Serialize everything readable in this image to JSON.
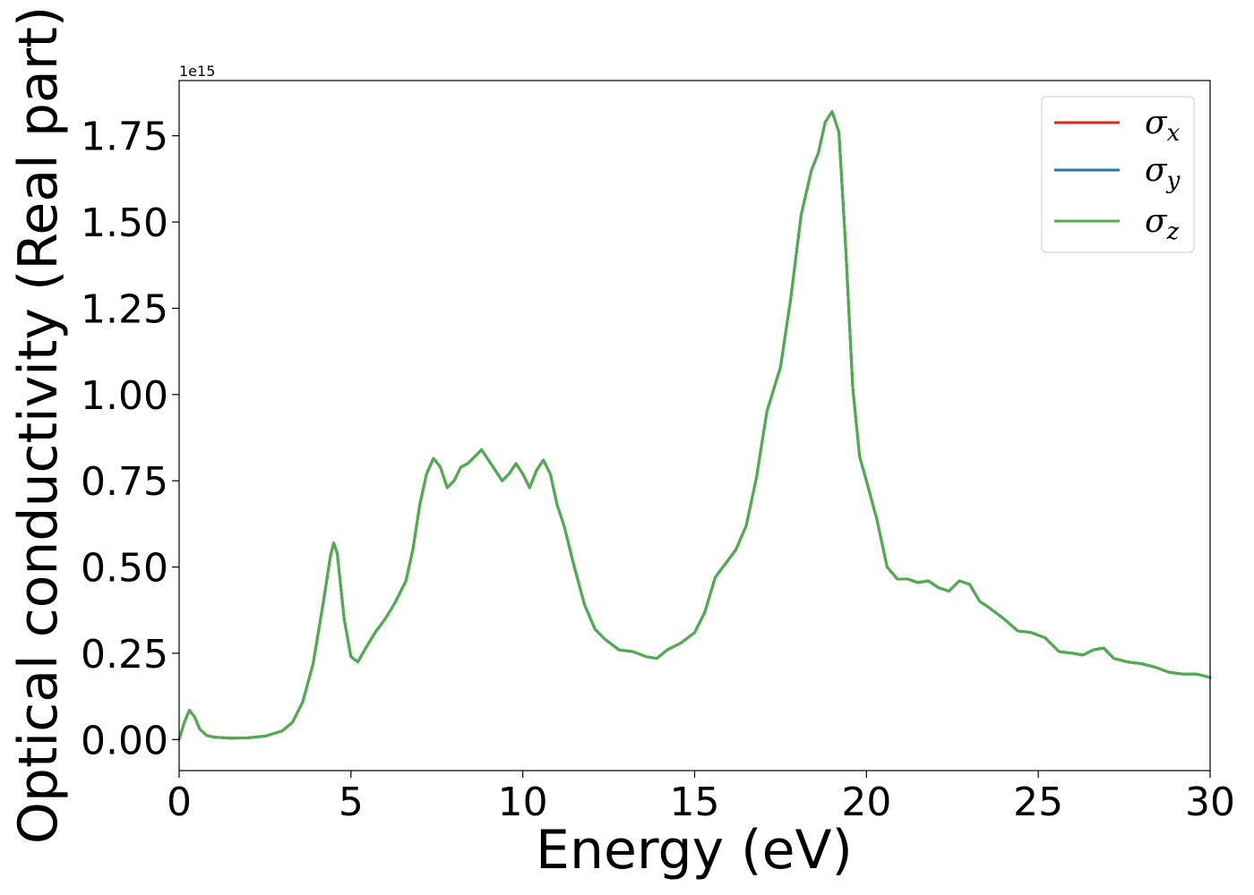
{
  "chart_data": {
    "type": "line",
    "title": "",
    "xlabel": "Energy (eV)",
    "ylabel": "Optical conductivity (Real part)",
    "y_offset_label": "1e15",
    "xlim": [
      0,
      30
    ],
    "ylim": [
      -0.09,
      1.91
    ],
    "x_ticks": [
      0,
      5,
      10,
      15,
      20,
      25,
      30
    ],
    "x_tick_labels": [
      "0",
      "5",
      "10",
      "15",
      "20",
      "25",
      "30"
    ],
    "y_ticks": [
      0.0,
      0.25,
      0.5,
      0.75,
      1.0,
      1.25,
      1.5,
      1.75
    ],
    "y_tick_labels": [
      "0.00",
      "0.25",
      "0.50",
      "0.75",
      "1.00",
      "1.25",
      "1.50",
      "1.75"
    ],
    "grid": false,
    "legend_position": "top-right",
    "x": [
      0,
      0.15,
      0.3,
      0.45,
      0.6,
      0.8,
      1.0,
      1.5,
      2.0,
      2.5,
      3.0,
      3.3,
      3.6,
      3.9,
      4.2,
      4.4,
      4.5,
      4.6,
      4.8,
      5.0,
      5.2,
      5.4,
      5.7,
      6.0,
      6.3,
      6.6,
      6.8,
      7.0,
      7.2,
      7.4,
      7.6,
      7.8,
      8.0,
      8.2,
      8.4,
      8.6,
      8.8,
      9.0,
      9.2,
      9.4,
      9.6,
      9.8,
      10.0,
      10.2,
      10.4,
      10.6,
      10.8,
      11.0,
      11.2,
      11.5,
      11.8,
      12.1,
      12.4,
      12.8,
      13.2,
      13.6,
      13.9,
      14.2,
      14.6,
      15.0,
      15.3,
      15.6,
      15.9,
      16.2,
      16.5,
      16.8,
      17.1,
      17.5,
      17.8,
      18.1,
      18.4,
      18.6,
      18.8,
      19.0,
      19.2,
      19.4,
      19.6,
      19.8,
      20.0,
      20.3,
      20.6,
      20.9,
      21.2,
      21.5,
      21.8,
      22.1,
      22.4,
      22.7,
      23.0,
      23.3,
      23.6,
      24.0,
      24.4,
      24.8,
      25.2,
      25.6,
      26.0,
      26.3,
      26.6,
      26.9,
      27.2,
      27.6,
      28.0,
      28.4,
      28.8,
      29.2,
      29.6,
      30.0
    ],
    "series": [
      {
        "name": "σx",
        "color": "#d62728",
        "values": [
          0.0,
          0.05,
          0.085,
          0.065,
          0.03,
          0.012,
          0.007,
          0.004,
          0.005,
          0.01,
          0.025,
          0.05,
          0.11,
          0.22,
          0.4,
          0.53,
          0.57,
          0.54,
          0.35,
          0.24,
          0.225,
          0.26,
          0.31,
          0.35,
          0.4,
          0.46,
          0.55,
          0.68,
          0.77,
          0.815,
          0.79,
          0.73,
          0.75,
          0.79,
          0.8,
          0.82,
          0.84,
          0.81,
          0.78,
          0.75,
          0.77,
          0.8,
          0.77,
          0.73,
          0.78,
          0.81,
          0.77,
          0.68,
          0.62,
          0.5,
          0.39,
          0.32,
          0.29,
          0.26,
          0.255,
          0.24,
          0.235,
          0.26,
          0.28,
          0.31,
          0.37,
          0.47,
          0.51,
          0.55,
          0.62,
          0.76,
          0.95,
          1.08,
          1.28,
          1.52,
          1.65,
          1.7,
          1.79,
          1.82,
          1.76,
          1.42,
          1.02,
          0.82,
          0.75,
          0.64,
          0.5,
          0.465,
          0.465,
          0.455,
          0.46,
          0.44,
          0.43,
          0.46,
          0.45,
          0.4,
          0.38,
          0.35,
          0.315,
          0.31,
          0.295,
          0.255,
          0.25,
          0.245,
          0.26,
          0.265,
          0.235,
          0.225,
          0.22,
          0.21,
          0.195,
          0.19,
          0.19,
          0.18
        ]
      },
      {
        "name": "σy",
        "color": "#1f77b4",
        "values": [
          0.0,
          0.05,
          0.085,
          0.065,
          0.03,
          0.012,
          0.007,
          0.004,
          0.005,
          0.01,
          0.025,
          0.05,
          0.11,
          0.22,
          0.4,
          0.53,
          0.57,
          0.54,
          0.35,
          0.24,
          0.225,
          0.26,
          0.31,
          0.35,
          0.4,
          0.46,
          0.55,
          0.68,
          0.77,
          0.815,
          0.79,
          0.73,
          0.75,
          0.79,
          0.8,
          0.82,
          0.84,
          0.81,
          0.78,
          0.75,
          0.77,
          0.8,
          0.77,
          0.73,
          0.78,
          0.81,
          0.77,
          0.68,
          0.62,
          0.5,
          0.39,
          0.32,
          0.29,
          0.26,
          0.255,
          0.24,
          0.235,
          0.26,
          0.28,
          0.31,
          0.37,
          0.47,
          0.51,
          0.55,
          0.62,
          0.76,
          0.95,
          1.08,
          1.28,
          1.52,
          1.65,
          1.7,
          1.79,
          1.82,
          1.76,
          1.42,
          1.02,
          0.82,
          0.75,
          0.64,
          0.5,
          0.465,
          0.465,
          0.455,
          0.46,
          0.44,
          0.43,
          0.46,
          0.45,
          0.4,
          0.38,
          0.35,
          0.315,
          0.31,
          0.295,
          0.255,
          0.25,
          0.245,
          0.26,
          0.265,
          0.235,
          0.225,
          0.22,
          0.21,
          0.195,
          0.19,
          0.19,
          0.18
        ]
      },
      {
        "name": "σz",
        "color": "#4daf4a",
        "values": [
          0.0,
          0.05,
          0.085,
          0.065,
          0.03,
          0.012,
          0.007,
          0.004,
          0.005,
          0.01,
          0.025,
          0.05,
          0.11,
          0.22,
          0.4,
          0.53,
          0.57,
          0.54,
          0.35,
          0.24,
          0.225,
          0.26,
          0.31,
          0.35,
          0.4,
          0.46,
          0.55,
          0.68,
          0.77,
          0.815,
          0.79,
          0.73,
          0.75,
          0.79,
          0.8,
          0.82,
          0.84,
          0.81,
          0.78,
          0.75,
          0.77,
          0.8,
          0.77,
          0.73,
          0.78,
          0.81,
          0.77,
          0.68,
          0.62,
          0.5,
          0.39,
          0.32,
          0.29,
          0.26,
          0.255,
          0.24,
          0.235,
          0.26,
          0.28,
          0.31,
          0.37,
          0.47,
          0.51,
          0.55,
          0.62,
          0.76,
          0.95,
          1.08,
          1.28,
          1.52,
          1.65,
          1.7,
          1.79,
          1.82,
          1.76,
          1.42,
          1.02,
          0.82,
          0.75,
          0.64,
          0.5,
          0.465,
          0.465,
          0.455,
          0.46,
          0.44,
          0.43,
          0.46,
          0.45,
          0.4,
          0.38,
          0.35,
          0.315,
          0.31,
          0.295,
          0.255,
          0.25,
          0.245,
          0.26,
          0.265,
          0.235,
          0.225,
          0.22,
          0.21,
          0.195,
          0.19,
          0.19,
          0.18
        ]
      }
    ],
    "legend": [
      {
        "symbol": "σ",
        "sub": "x"
      },
      {
        "symbol": "σ",
        "sub": "y"
      },
      {
        "symbol": "σ",
        "sub": "z"
      }
    ]
  }
}
